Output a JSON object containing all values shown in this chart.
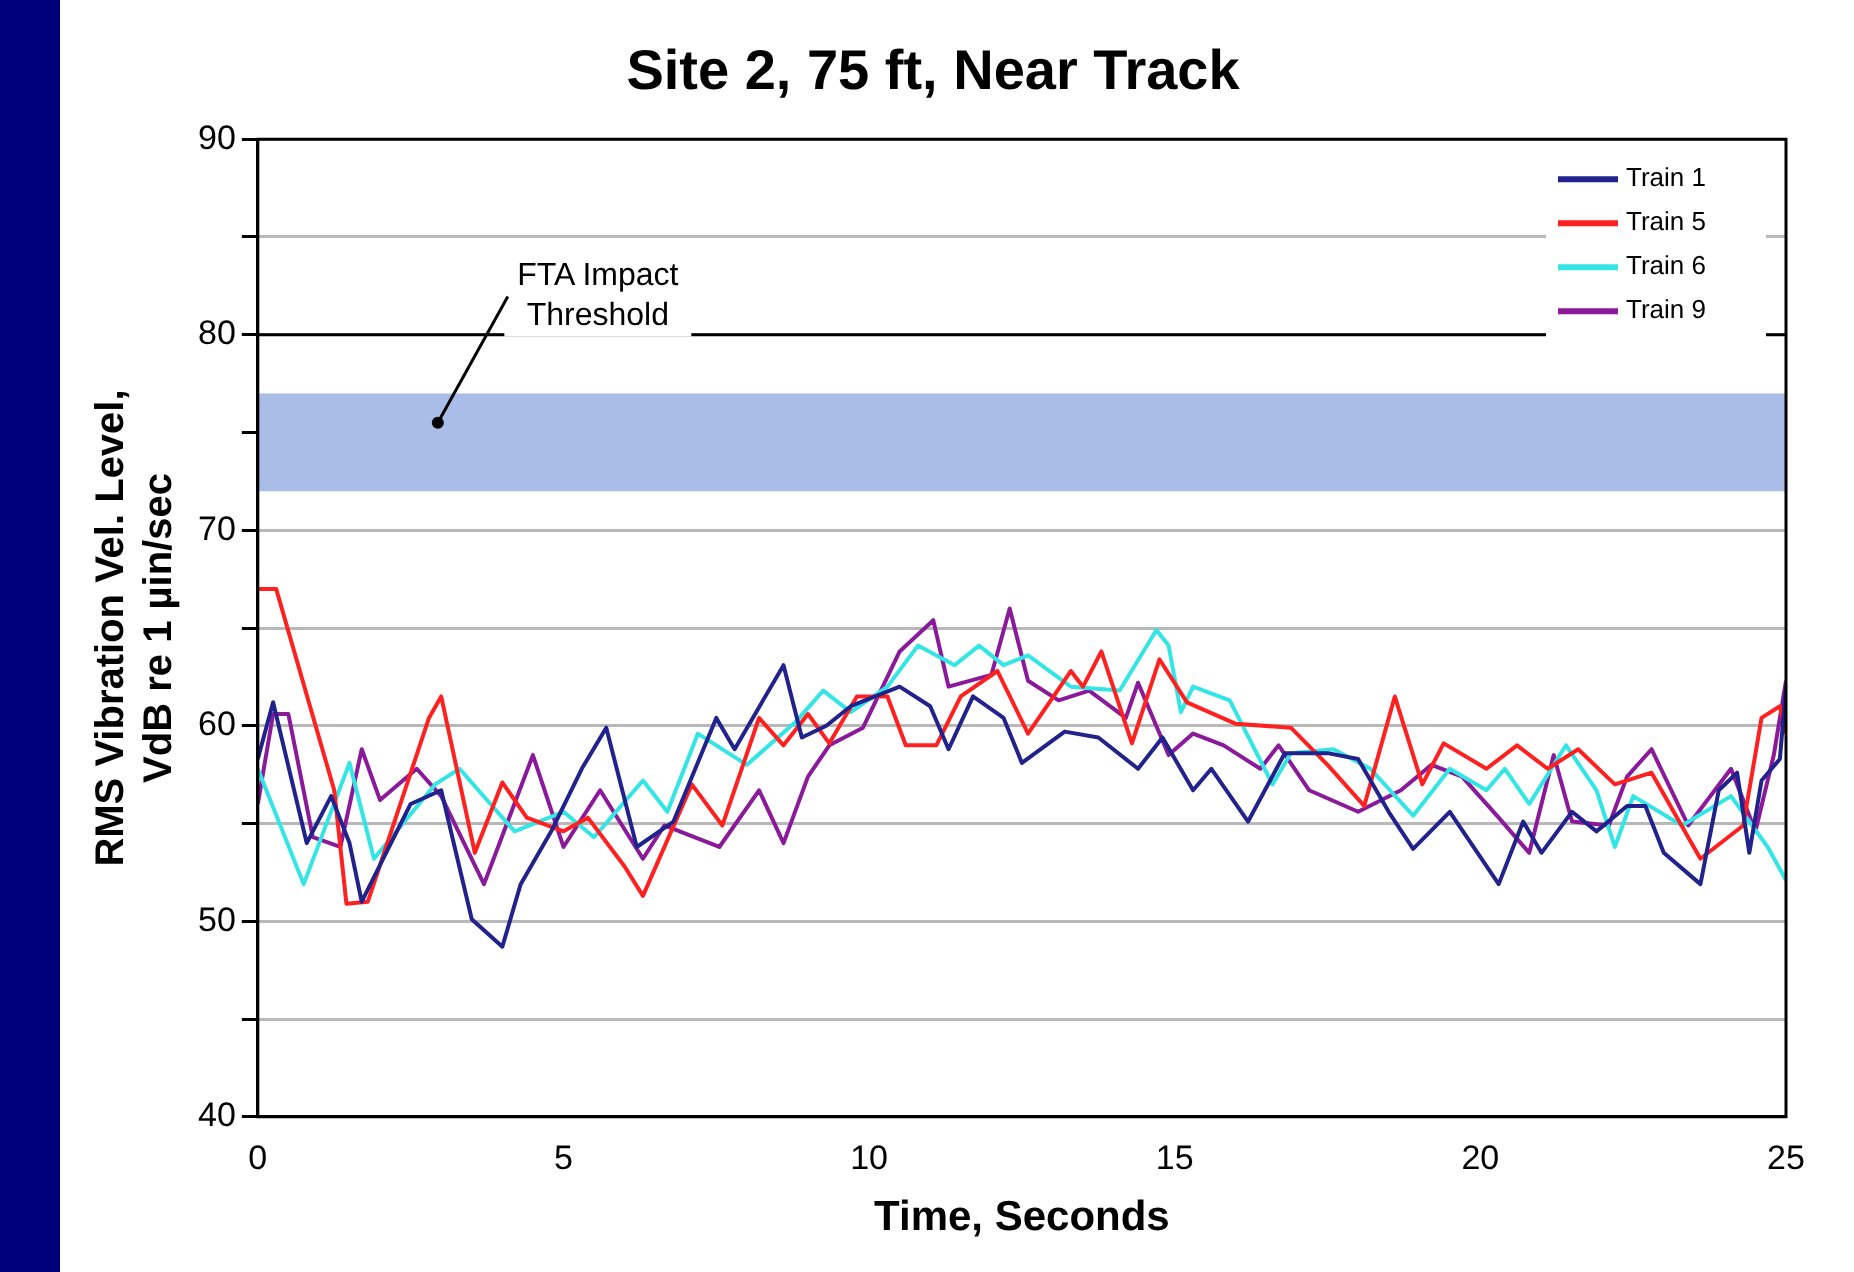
{
  "chart_data": {
    "type": "line",
    "title": "Site 2, 75 ft, Near Track",
    "xlabel": "Time, Seconds",
    "ylabel": "RMS Vibration Vel. Level, VdB re 1 µin/sec",
    "xlim": [
      0,
      25
    ],
    "xticks": [
      0,
      5,
      10,
      15,
      20,
      25
    ],
    "ylim": [
      40,
      90
    ],
    "yticks": [
      40,
      {
        "value": 45,
        "label": null
      },
      50,
      {
        "value": 55,
        "label": null
      },
      60,
      {
        "value": 65,
        "label": null
      },
      70,
      {
        "value": 75,
        "label": null
      },
      80,
      {
        "value": 85,
        "label": null
      },
      90
    ],
    "grid": "y",
    "legend": "top right",
    "marker": "none",
    "line_style": "solid",
    "ref_lines": [
      {
        "axis": "y",
        "value": 80,
        "color": "#000000"
      }
    ],
    "bands": [
      {
        "axis": "y",
        "from": 72,
        "to": 77,
        "label": "FTA Impact Threshold",
        "color": "#aabde8"
      }
    ],
    "series": [
      {
        "name": "Train 1",
        "color": "#22228c",
        "x": [
          0,
          0.25,
          0.8,
          1.2,
          1.5,
          1.7,
          2.5,
          3.0,
          3.5,
          4.0,
          4.3,
          4.8,
          5.3,
          5.7,
          6.2,
          6.8,
          7.5,
          7.8,
          8.6,
          8.9,
          9.3,
          9.7,
          10.5,
          11.0,
          11.3,
          11.7,
          12.2,
          12.5,
          13.2,
          13.75,
          14.4,
          14.8,
          15.3,
          15.6,
          16.2,
          16.8,
          17.5,
          18.0,
          18.5,
          18.9,
          19.5,
          20.3,
          20.7,
          21.0,
          21.5,
          21.9,
          22.4,
          22.7,
          23.0,
          23.6,
          23.9,
          24.2,
          24.4,
          24.6,
          24.9,
          25
        ],
        "values": [
          58.3,
          61.2,
          54,
          56.4,
          54,
          51,
          56,
          56.7,
          50.1,
          48.7,
          51.9,
          54.6,
          57.8,
          59.9,
          53.8,
          55.1,
          60.4,
          58.8,
          63.1,
          59.4,
          60,
          61,
          62,
          61,
          58.8,
          61.5,
          60.4,
          58.1,
          59.7,
          59.4,
          57.8,
          59.4,
          56.7,
          57.8,
          55.1,
          58.6,
          58.6,
          58.3,
          55.6,
          53.7,
          55.6,
          51.9,
          55.1,
          53.5,
          55.6,
          54.6,
          55.9,
          55.9,
          53.5,
          51.9,
          56.7,
          57.6,
          53.5,
          57.2,
          58.3,
          62
        ]
      },
      {
        "name": "Train 5",
        "color": "#ff2020",
        "x": [
          0,
          0.3,
          1.25,
          1.45,
          1.8,
          2.8,
          3.0,
          3.55,
          4.0,
          4.4,
          5.0,
          5.4,
          6.0,
          6.3,
          7.1,
          7.6,
          8.2,
          8.6,
          9.0,
          9.35,
          9.8,
          10.3,
          10.6,
          11.1,
          11.5,
          12.1,
          12.6,
          13.3,
          13.5,
          13.8,
          14.3,
          14.75,
          15.2,
          16.0,
          16.9,
          17.5,
          18.1,
          18.6,
          19.05,
          19.4,
          20.1,
          20.6,
          21.1,
          21.6,
          22.2,
          22.8,
          23.6,
          24.3,
          24.6,
          24.9,
          25
        ],
        "values": [
          67,
          67,
          56.7,
          50.9,
          51,
          60.4,
          61.5,
          53.5,
          57.1,
          55.3,
          54.6,
          55.3,
          52.8,
          51.3,
          57,
          54.9,
          60.4,
          59,
          60.6,
          59.1,
          61.5,
          61.5,
          59,
          59,
          61.5,
          62.8,
          59.6,
          62.8,
          62,
          63.8,
          59.1,
          63.4,
          61.2,
          60.1,
          59.9,
          58,
          55.9,
          61.5,
          57,
          59.1,
          57.8,
          59,
          57.8,
          58.8,
          57,
          57.6,
          53.2,
          54.9,
          60.4,
          61,
          59.6
        ]
      },
      {
        "name": "Train 6",
        "color": "#33e5e5",
        "x": [
          0,
          0.75,
          1.5,
          1.9,
          2.9,
          3.3,
          4.2,
          5.0,
          5.5,
          6.3,
          6.7,
          7.2,
          8.0,
          8.8,
          9.25,
          9.7,
          10.3,
          10.8,
          11.4,
          11.8,
          12.2,
          12.6,
          13.3,
          14.1,
          14.7,
          14.9,
          15.1,
          15.3,
          15.9,
          16.6,
          16.9,
          17.6,
          18.2,
          18.9,
          19.5,
          20.1,
          20.4,
          20.8,
          21.4,
          21.9,
          22.2,
          22.5,
          23.3,
          24.1,
          24.7,
          25
        ],
        "values": [
          57.8,
          51.9,
          58.1,
          53.2,
          57,
          57.8,
          54.6,
          55.6,
          54.3,
          57.2,
          55.6,
          59.6,
          58,
          60.2,
          61.8,
          60.7,
          62,
          64.1,
          63.1,
          64.1,
          63.1,
          63.6,
          62,
          61.8,
          64.9,
          64.1,
          60.7,
          62,
          61.3,
          57,
          58.6,
          58.8,
          57.8,
          55.4,
          57.8,
          56.7,
          57.8,
          56,
          59,
          56.7,
          53.8,
          56.4,
          54.9,
          56.4,
          53.8,
          52.1
        ]
      },
      {
        "name": "Train 9",
        "color": "#8b1a9b",
        "x": [
          0,
          0.25,
          0.5,
          0.9,
          1.35,
          1.7,
          2.0,
          2.6,
          3.0,
          3.7,
          4.5,
          5.0,
          5.6,
          6.3,
          6.65,
          7.55,
          8.2,
          8.6,
          9.0,
          9.35,
          9.9,
          10.5,
          11.05,
          11.3,
          12.0,
          12.3,
          12.6,
          13.1,
          13.6,
          14.2,
          14.4,
          14.9,
          15.3,
          15.8,
          16.4,
          16.7,
          17.2,
          18.0,
          18.7,
          19.2,
          19.7,
          20.3,
          20.8,
          21.2,
          21.5,
          22.1,
          22.4,
          22.8,
          23.4,
          24.1,
          24.5,
          24.8,
          25
        ],
        "values": [
          56,
          60.6,
          60.6,
          54.3,
          53.8,
          58.8,
          56.2,
          57.8,
          56.4,
          51.9,
          58.5,
          53.8,
          56.7,
          53.2,
          54.9,
          53.8,
          56.7,
          54,
          57.4,
          59,
          59.9,
          63.8,
          65.4,
          62,
          62.6,
          66,
          62.3,
          61.3,
          61.8,
          60.4,
          62.2,
          58.5,
          59.6,
          59,
          57.8,
          59,
          56.7,
          55.6,
          56.7,
          58,
          57.4,
          55.3,
          53.5,
          58.5,
          55.1,
          54.9,
          57.4,
          58.8,
          54.9,
          57.8,
          54.6,
          58.5,
          62.3
        ]
      }
    ]
  }
}
